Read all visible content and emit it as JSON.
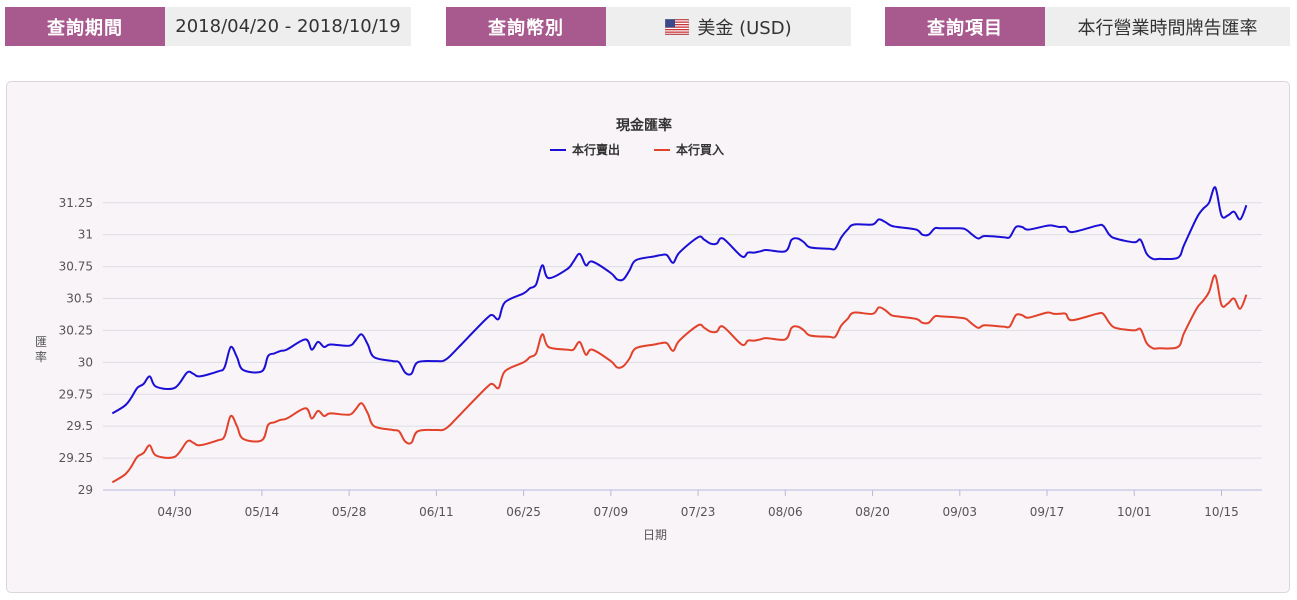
{
  "filters": [
    {
      "label": "查詢期間",
      "value": "2018/04/20 - 2018/10/19"
    },
    {
      "label": "查詢幣別",
      "value": "美金 (USD)",
      "icon": "us-flag-icon"
    },
    {
      "label": "查詢項目",
      "value": "本行營業時間牌告匯率"
    }
  ],
  "colors": {
    "accent": "#a8598d",
    "sell": "#1b0fd6",
    "buy": "#e2412a"
  },
  "chart_data": {
    "type": "line",
    "title": "現金匯率",
    "xlabel": "日期",
    "ylabel": "匯率",
    "ylim": [
      29,
      31.35
    ],
    "yticks": [
      29,
      29.25,
      29.5,
      29.75,
      30,
      30.25,
      30.5,
      30.75,
      31,
      31.25
    ],
    "ytick_labels": [
      "29",
      "29.25",
      "29.5",
      "29.75",
      "30",
      "30.25",
      "30.5",
      "30.75",
      "31",
      "31.25"
    ],
    "xlim_days": [
      "2018-04-20",
      "2018-10-19"
    ],
    "xticks": [
      {
        "date": "2018-04-30",
        "label": "04/30"
      },
      {
        "date": "2018-05-14",
        "label": "05/14"
      },
      {
        "date": "2018-05-28",
        "label": "05/28"
      },
      {
        "date": "2018-06-11",
        "label": "06/11"
      },
      {
        "date": "2018-06-25",
        "label": "06/25"
      },
      {
        "date": "2018-07-09",
        "label": "07/09"
      },
      {
        "date": "2018-07-23",
        "label": "07/23"
      },
      {
        "date": "2018-08-06",
        "label": "08/06"
      },
      {
        "date": "2018-08-20",
        "label": "08/20"
      },
      {
        "date": "2018-09-03",
        "label": "09/03"
      },
      {
        "date": "2018-09-17",
        "label": "09/17"
      },
      {
        "date": "2018-10-01",
        "label": "10/01"
      },
      {
        "date": "2018-10-15",
        "label": "10/15"
      }
    ],
    "legend_position": "top-center",
    "series": [
      {
        "name": "本行賣出",
        "color": "#1b0fd6",
        "points": [
          [
            "2018-04-20",
            29.6
          ],
          [
            "2018-04-22",
            29.66
          ],
          [
            "2018-04-23",
            29.72
          ],
          [
            "2018-04-24",
            29.8
          ],
          [
            "2018-04-25",
            29.83
          ],
          [
            "2018-04-26",
            29.89
          ],
          [
            "2018-04-27",
            29.81
          ],
          [
            "2018-04-30",
            29.8
          ],
          [
            "2018-05-02",
            29.92
          ],
          [
            "2018-05-03",
            29.91
          ],
          [
            "2018-05-04",
            29.89
          ],
          [
            "2018-05-07",
            29.93
          ],
          [
            "2018-05-08",
            29.96
          ],
          [
            "2018-05-09",
            30.12
          ],
          [
            "2018-05-10",
            30.04
          ],
          [
            "2018-05-11",
            29.94
          ],
          [
            "2018-05-14",
            29.93
          ],
          [
            "2018-05-15",
            30.05
          ],
          [
            "2018-05-16",
            30.07
          ],
          [
            "2018-05-17",
            30.09
          ],
          [
            "2018-05-18",
            30.1
          ],
          [
            "2018-05-21",
            30.18
          ],
          [
            "2018-05-22",
            30.1
          ],
          [
            "2018-05-23",
            30.16
          ],
          [
            "2018-05-24",
            30.12
          ],
          [
            "2018-05-25",
            30.14
          ],
          [
            "2018-05-28",
            30.13
          ],
          [
            "2018-05-29",
            30.17
          ],
          [
            "2018-05-30",
            30.22
          ],
          [
            "2018-05-31",
            30.14
          ],
          [
            "2018-06-01",
            30.04
          ],
          [
            "2018-06-04",
            30.01
          ],
          [
            "2018-06-05",
            30.0
          ],
          [
            "2018-06-06",
            29.92
          ],
          [
            "2018-06-07",
            29.91
          ],
          [
            "2018-06-08",
            30.0
          ],
          [
            "2018-06-11",
            30.01
          ],
          [
            "2018-06-12",
            30.01
          ],
          [
            "2018-06-13",
            30.04
          ],
          [
            "2018-06-14",
            30.09
          ],
          [
            "2018-06-15",
            30.14
          ],
          [
            "2018-06-19",
            30.34
          ],
          [
            "2018-06-20",
            30.37
          ],
          [
            "2018-06-21",
            30.34
          ],
          [
            "2018-06-22",
            30.47
          ],
          [
            "2018-06-25",
            30.54
          ],
          [
            "2018-06-26",
            30.58
          ],
          [
            "2018-06-27",
            30.61
          ],
          [
            "2018-06-28",
            30.76
          ],
          [
            "2018-06-29",
            30.66
          ],
          [
            "2018-07-02",
            30.73
          ],
          [
            "2018-07-03",
            30.79
          ],
          [
            "2018-07-04",
            30.85
          ],
          [
            "2018-07-05",
            30.76
          ],
          [
            "2018-07-06",
            30.79
          ],
          [
            "2018-07-09",
            30.7
          ],
          [
            "2018-07-10",
            30.65
          ],
          [
            "2018-07-11",
            30.65
          ],
          [
            "2018-07-12",
            30.72
          ],
          [
            "2018-07-13",
            30.8
          ],
          [
            "2018-07-16",
            30.83
          ],
          [
            "2018-07-17",
            30.84
          ],
          [
            "2018-07-18",
            30.84
          ],
          [
            "2018-07-19",
            30.78
          ],
          [
            "2018-07-20",
            30.86
          ],
          [
            "2018-07-23",
            30.98
          ],
          [
            "2018-07-24",
            30.96
          ],
          [
            "2018-07-25",
            30.93
          ],
          [
            "2018-07-26",
            30.93
          ],
          [
            "2018-07-27",
            30.97
          ],
          [
            "2018-07-30",
            30.83
          ],
          [
            "2018-07-31",
            30.86
          ],
          [
            "2018-08-01",
            30.86
          ],
          [
            "2018-08-02",
            30.87
          ],
          [
            "2018-08-03",
            30.88
          ],
          [
            "2018-08-06",
            30.87
          ],
          [
            "2018-08-07",
            30.96
          ],
          [
            "2018-08-08",
            30.97
          ],
          [
            "2018-08-09",
            30.94
          ],
          [
            "2018-08-10",
            30.9
          ],
          [
            "2018-08-13",
            30.89
          ],
          [
            "2018-08-14",
            30.89
          ],
          [
            "2018-08-15",
            30.98
          ],
          [
            "2018-08-16",
            31.04
          ],
          [
            "2018-08-17",
            31.08
          ],
          [
            "2018-08-20",
            31.08
          ],
          [
            "2018-08-21",
            31.12
          ],
          [
            "2018-08-22",
            31.1
          ],
          [
            "2018-08-23",
            31.07
          ],
          [
            "2018-08-24",
            31.06
          ],
          [
            "2018-08-27",
            31.04
          ],
          [
            "2018-08-28",
            31.0
          ],
          [
            "2018-08-29",
            31.0
          ],
          [
            "2018-08-30",
            31.05
          ],
          [
            "2018-08-31",
            31.05
          ],
          [
            "2018-09-03",
            31.05
          ],
          [
            "2018-09-04",
            31.04
          ],
          [
            "2018-09-05",
            31.0
          ],
          [
            "2018-09-06",
            30.97
          ],
          [
            "2018-09-07",
            30.99
          ],
          [
            "2018-09-10",
            30.98
          ],
          [
            "2018-09-11",
            30.98
          ],
          [
            "2018-09-12",
            31.06
          ],
          [
            "2018-09-13",
            31.06
          ],
          [
            "2018-09-14",
            31.04
          ],
          [
            "2018-09-17",
            31.07
          ],
          [
            "2018-09-18",
            31.07
          ],
          [
            "2018-09-19",
            31.06
          ],
          [
            "2018-09-20",
            31.06
          ],
          [
            "2018-09-21",
            31.02
          ],
          [
            "2018-09-25",
            31.07
          ],
          [
            "2018-09-26",
            31.07
          ],
          [
            "2018-09-27",
            31.0
          ],
          [
            "2018-09-28",
            30.97
          ],
          [
            "2018-10-01",
            30.94
          ],
          [
            "2018-10-02",
            30.96
          ],
          [
            "2018-10-03",
            30.85
          ],
          [
            "2018-10-04",
            30.81
          ],
          [
            "2018-10-05",
            30.81
          ],
          [
            "2018-10-08",
            30.82
          ],
          [
            "2018-10-09",
            30.92
          ],
          [
            "2018-10-11",
            31.13
          ],
          [
            "2018-10-12",
            31.2
          ],
          [
            "2018-10-13",
            31.25
          ],
          [
            "2018-10-14",
            31.37
          ],
          [
            "2018-10-15",
            31.15
          ],
          [
            "2018-10-16",
            31.15
          ],
          [
            "2018-10-17",
            31.18
          ],
          [
            "2018-10-18",
            31.12
          ],
          [
            "2018-10-19",
            31.23
          ]
        ]
      },
      {
        "name": "本行買入",
        "color": "#e2412a",
        "points": [
          [
            "2018-04-20",
            29.06
          ],
          [
            "2018-04-22",
            29.12
          ],
          [
            "2018-04-23",
            29.18
          ],
          [
            "2018-04-24",
            29.26
          ],
          [
            "2018-04-25",
            29.29
          ],
          [
            "2018-04-26",
            29.35
          ],
          [
            "2018-04-27",
            29.27
          ],
          [
            "2018-04-30",
            29.26
          ],
          [
            "2018-05-02",
            29.38
          ],
          [
            "2018-05-03",
            29.37
          ],
          [
            "2018-05-04",
            29.35
          ],
          [
            "2018-05-07",
            29.39
          ],
          [
            "2018-05-08",
            29.42
          ],
          [
            "2018-05-09",
            29.58
          ],
          [
            "2018-05-10",
            29.5
          ],
          [
            "2018-05-11",
            29.4
          ],
          [
            "2018-05-14",
            29.39
          ],
          [
            "2018-05-15",
            29.51
          ],
          [
            "2018-05-16",
            29.53
          ],
          [
            "2018-05-17",
            29.55
          ],
          [
            "2018-05-18",
            29.56
          ],
          [
            "2018-05-21",
            29.64
          ],
          [
            "2018-05-22",
            29.56
          ],
          [
            "2018-05-23",
            29.62
          ],
          [
            "2018-05-24",
            29.58
          ],
          [
            "2018-05-25",
            29.6
          ],
          [
            "2018-05-28",
            29.59
          ],
          [
            "2018-05-29",
            29.63
          ],
          [
            "2018-05-30",
            29.68
          ],
          [
            "2018-05-31",
            29.6
          ],
          [
            "2018-06-01",
            29.5
          ],
          [
            "2018-06-04",
            29.47
          ],
          [
            "2018-06-05",
            29.46
          ],
          [
            "2018-06-06",
            29.38
          ],
          [
            "2018-06-07",
            29.37
          ],
          [
            "2018-06-08",
            29.46
          ],
          [
            "2018-06-11",
            29.47
          ],
          [
            "2018-06-12",
            29.47
          ],
          [
            "2018-06-13",
            29.5
          ],
          [
            "2018-06-14",
            29.55
          ],
          [
            "2018-06-15",
            29.6
          ],
          [
            "2018-06-19",
            29.8
          ],
          [
            "2018-06-20",
            29.83
          ],
          [
            "2018-06-21",
            29.8
          ],
          [
            "2018-06-22",
            29.93
          ],
          [
            "2018-06-25",
            30.0
          ],
          [
            "2018-06-26",
            30.04
          ],
          [
            "2018-06-27",
            30.07
          ],
          [
            "2018-06-28",
            30.22
          ],
          [
            "2018-06-29",
            30.12
          ],
          [
            "2018-07-02",
            30.1
          ],
          [
            "2018-07-03",
            30.1
          ],
          [
            "2018-07-04",
            30.16
          ],
          [
            "2018-07-05",
            30.06
          ],
          [
            "2018-07-06",
            30.1
          ],
          [
            "2018-07-09",
            30.01
          ],
          [
            "2018-07-10",
            29.96
          ],
          [
            "2018-07-11",
            29.97
          ],
          [
            "2018-07-12",
            30.03
          ],
          [
            "2018-07-13",
            30.11
          ],
          [
            "2018-07-16",
            30.14
          ],
          [
            "2018-07-17",
            30.15
          ],
          [
            "2018-07-18",
            30.15
          ],
          [
            "2018-07-19",
            30.09
          ],
          [
            "2018-07-20",
            30.17
          ],
          [
            "2018-07-23",
            30.29
          ],
          [
            "2018-07-24",
            30.27
          ],
          [
            "2018-07-25",
            30.24
          ],
          [
            "2018-07-26",
            30.24
          ],
          [
            "2018-07-27",
            30.28
          ],
          [
            "2018-07-30",
            30.14
          ],
          [
            "2018-07-31",
            30.17
          ],
          [
            "2018-08-01",
            30.17
          ],
          [
            "2018-08-02",
            30.18
          ],
          [
            "2018-08-03",
            30.19
          ],
          [
            "2018-08-06",
            30.18
          ],
          [
            "2018-08-07",
            30.27
          ],
          [
            "2018-08-08",
            30.28
          ],
          [
            "2018-08-09",
            30.25
          ],
          [
            "2018-08-10",
            30.21
          ],
          [
            "2018-08-13",
            30.2
          ],
          [
            "2018-08-14",
            30.2
          ],
          [
            "2018-08-15",
            30.29
          ],
          [
            "2018-08-16",
            30.34
          ],
          [
            "2018-08-17",
            30.39
          ],
          [
            "2018-08-20",
            30.38
          ],
          [
            "2018-08-21",
            30.43
          ],
          [
            "2018-08-22",
            30.41
          ],
          [
            "2018-08-23",
            30.37
          ],
          [
            "2018-08-24",
            30.36
          ],
          [
            "2018-08-27",
            30.34
          ],
          [
            "2018-08-28",
            30.31
          ],
          [
            "2018-08-29",
            30.31
          ],
          [
            "2018-08-30",
            30.36
          ],
          [
            "2018-08-31",
            30.36
          ],
          [
            "2018-09-03",
            30.35
          ],
          [
            "2018-09-04",
            30.34
          ],
          [
            "2018-09-05",
            30.3
          ],
          [
            "2018-09-06",
            30.27
          ],
          [
            "2018-09-07",
            30.29
          ],
          [
            "2018-09-10",
            30.28
          ],
          [
            "2018-09-11",
            30.28
          ],
          [
            "2018-09-12",
            30.37
          ],
          [
            "2018-09-13",
            30.37
          ],
          [
            "2018-09-14",
            30.35
          ],
          [
            "2018-09-17",
            30.39
          ],
          [
            "2018-09-18",
            30.38
          ],
          [
            "2018-09-19",
            30.38
          ],
          [
            "2018-09-20",
            30.38
          ],
          [
            "2018-09-21",
            30.33
          ],
          [
            "2018-09-25",
            30.38
          ],
          [
            "2018-09-26",
            30.38
          ],
          [
            "2018-09-27",
            30.31
          ],
          [
            "2018-09-28",
            30.27
          ],
          [
            "2018-10-01",
            30.25
          ],
          [
            "2018-10-02",
            30.26
          ],
          [
            "2018-10-03",
            30.15
          ],
          [
            "2018-10-04",
            30.11
          ],
          [
            "2018-10-05",
            30.11
          ],
          [
            "2018-10-08",
            30.12
          ],
          [
            "2018-10-09",
            30.23
          ],
          [
            "2018-10-11",
            30.42
          ],
          [
            "2018-10-12",
            30.48
          ],
          [
            "2018-10-13",
            30.55
          ],
          [
            "2018-10-14",
            30.68
          ],
          [
            "2018-10-15",
            30.45
          ],
          [
            "2018-10-16",
            30.46
          ],
          [
            "2018-10-17",
            30.5
          ],
          [
            "2018-10-18",
            30.42
          ],
          [
            "2018-10-19",
            30.53
          ]
        ]
      }
    ]
  }
}
